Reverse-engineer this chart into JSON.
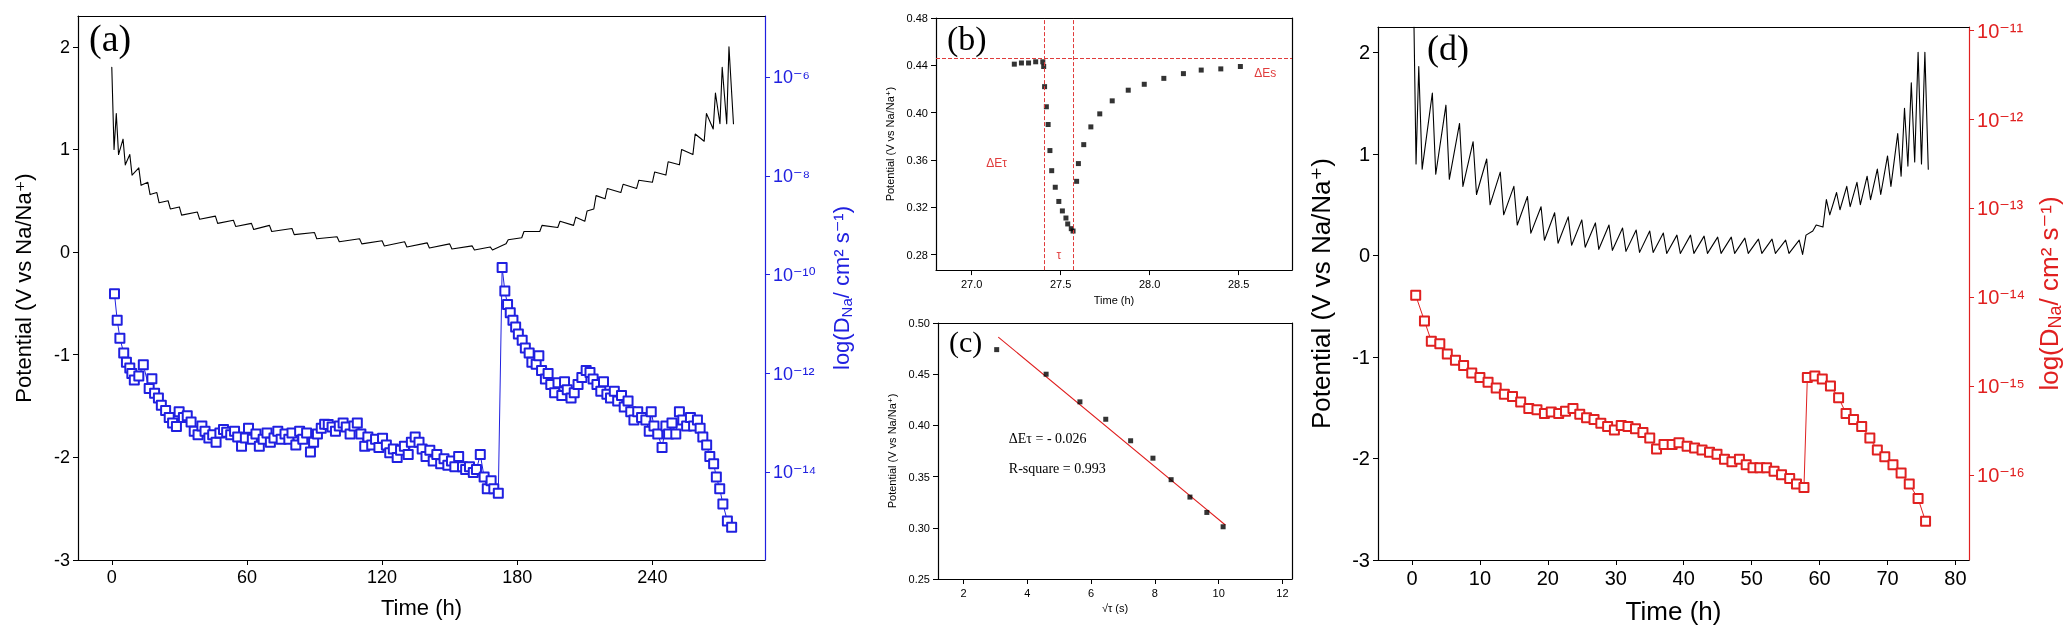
{
  "chart_data": [
    {
      "type": "line",
      "title": "(a)",
      "xlabel": "Time (h)",
      "ylabel": "Potential (V vs Na/Na⁺)",
      "y2label": "log(D$_{Na}$/ cm² s⁻¹)",
      "log": "y2",
      "xlim": [
        -15,
        290
      ],
      "xticks": [
        0,
        60,
        120,
        180,
        240
      ],
      "ylim": [
        -3,
        2.3
      ],
      "yticks": [
        -3,
        -2,
        -1,
        0,
        1,
        2
      ],
      "y2lim": [
        1.7e-16,
        1.7e-05
      ],
      "y2ticks": [
        {
          "value": 1e-14,
          "label": "10⁻¹⁴"
        },
        {
          "value": 1e-12,
          "label": "10⁻¹²"
        },
        {
          "value": 1e-10,
          "label": "10⁻¹⁰"
        },
        {
          "value": 1e-08,
          "label": "10⁻⁸"
        },
        {
          "value": 1e-06,
          "label": "10⁻⁶"
        }
      ],
      "series": [
        {
          "color": "#000000",
          "marker": "none",
          "x": [
            0,
            1,
            2,
            3,
            5,
            6,
            8,
            9,
            12,
            13,
            16,
            17,
            20,
            21,
            25,
            26,
            30,
            31,
            38,
            39,
            46,
            47,
            54,
            55,
            62,
            63,
            70,
            71,
            80,
            81,
            90,
            91,
            100,
            101,
            110,
            111,
            120,
            121,
            130,
            131,
            140,
            141,
            150,
            151,
            160,
            161,
            168,
            169,
            175,
            176,
            182,
            183,
            190,
            191,
            198,
            199,
            205,
            206,
            210,
            211,
            214,
            215,
            219,
            220,
            226,
            227,
            233,
            234,
            240,
            241,
            246,
            247,
            252,
            253,
            258,
            259,
            263,
            264,
            267,
            268,
            270,
            271,
            273,
            274,
            276
          ],
          "values": [
            1.8,
            1.0,
            1.35,
            0.95,
            1.1,
            0.85,
            0.95,
            0.75,
            0.82,
            0.65,
            0.68,
            0.56,
            0.58,
            0.48,
            0.5,
            0.42,
            0.44,
            0.36,
            0.39,
            0.32,
            0.35,
            0.28,
            0.31,
            0.25,
            0.28,
            0.22,
            0.26,
            0.2,
            0.23,
            0.17,
            0.19,
            0.13,
            0.15,
            0.1,
            0.13,
            0.08,
            0.11,
            0.06,
            0.1,
            0.05,
            0.09,
            0.04,
            0.08,
            0.03,
            0.06,
            0.02,
            0.05,
            0.02,
            0.08,
            0.12,
            0.14,
            0.2,
            0.2,
            0.26,
            0.24,
            0.3,
            0.26,
            0.34,
            0.3,
            0.4,
            0.42,
            0.55,
            0.52,
            0.62,
            0.58,
            0.66,
            0.62,
            0.7,
            0.68,
            0.78,
            0.75,
            0.88,
            0.85,
            1.0,
            0.95,
            1.15,
            1.08,
            1.35,
            1.2,
            1.55,
            1.25,
            1.8,
            1.25,
            2.0,
            1.25
          ]
        },
        {
          "color": "#2020e0",
          "marker": "square",
          "axis": "y2",
          "x": [
            1.2,
            2.4,
            3.6,
            5.3,
            6.5,
            8,
            8.9,
            10,
            12,
            14,
            16.6,
            17.8,
            19,
            20.7,
            22,
            23.9,
            25.5,
            27,
            28.7,
            29.9,
            31.8,
            33.5,
            35.2,
            36.6,
            38.3,
            40,
            41.4,
            43.1,
            44.8,
            46.3,
            48,
            49.6,
            51,
            52.8,
            54.5,
            55.9,
            57.6,
            59.3,
            60.7,
            62.4,
            64,
            65.5,
            67.2,
            68.9,
            70.4,
            72,
            73.7,
            75.2,
            76.9,
            78.6,
            80,
            81.7,
            83.4,
            84.8,
            86.5,
            88.2,
            89.6,
            91.3,
            93,
            94.5,
            96.1,
            97.8,
            99.3,
            101,
            102.7,
            104.1,
            105.8,
            107.5,
            109,
            110.6,
            112.3,
            113.7,
            115.4,
            117.1,
            118.6,
            120.2,
            121.9,
            123.4,
            125,
            126.7,
            128.2,
            129.9,
            131.6,
            133,
            134.7,
            136.4,
            137.8,
            139.5,
            141.2,
            142.7,
            144.3,
            146,
            147.5,
            149.2,
            150.8,
            152.3,
            154,
            155.7,
            157.1,
            158.8,
            160.5,
            161.9,
            163.6,
            165.3,
            166.7,
            168.4,
            169.6,
            171.6,
            173.3,
            174.5,
            175.7,
            176.9,
            178.1,
            179.3,
            180.5,
            182.2,
            183.6,
            185.3,
            186.5,
            188.4,
            189.6,
            190.8,
            192.5,
            193.7,
            194.9,
            196.6,
            198.1,
            199.8,
            201,
            202.2,
            203.9,
            205.3,
            207,
            208.7,
            210.6,
            212.3,
            213.7,
            215.4,
            217.1,
            218.3,
            219.8,
            221.4,
            223.1,
            224.6,
            226.3,
            227.5,
            229.2,
            230.4,
            231.8,
            233.5,
            235.2,
            237.1,
            238.6,
            239.5,
            240.7,
            242.4,
            244.3,
            246,
            247.2,
            248.7,
            250.4,
            252,
            253.5,
            255.2,
            256.9,
            258.3,
            260,
            261.2,
            262.4,
            264.1,
            265.5,
            267.2,
            268.4,
            269.9,
            271.3,
            273.3,
            275.2
          ],
          "values": [
            4.1e-11,
            1.2e-11,
            5.2e-12,
            2.6e-12,
            1.7e-12,
            1.3e-12,
            1e-12,
            7.4e-13,
            8.9e-13,
            1.5e-12,
            5e-13,
            7.9e-13,
            4e-13,
            3.2e-13,
            2.3e-13,
            1.8e-13,
            1.3e-13,
            1e-13,
            8.5e-14,
            1.7e-13,
            1.3e-13,
            1.4e-13,
            1.05e-13,
            6.8e-14,
            5.8e-14,
            8.7e-14,
            6.8e-14,
            5e-14,
            5.8e-14,
            4.1e-14,
            6.3e-14,
            7.4e-14,
            6.5e-14,
            5.8e-14,
            6.8e-14,
            5.2e-14,
            3.4e-14,
            5e-14,
            7.8e-14,
            4.7e-14,
            6e-14,
            3.4e-14,
            4.7e-14,
            6.3e-14,
            4.1e-14,
            5e-14,
            6.8e-14,
            4.7e-14,
            6e-14,
            4.7e-14,
            6.3e-14,
            3.6e-14,
            6.8e-14,
            4.7e-14,
            6.3e-14,
            2.6e-14,
            4.1e-14,
            6e-14,
            7.8e-14,
            9.5e-14,
            9.3e-14,
            8.3e-14,
            6.8e-14,
            8.7e-14,
            1e-13,
            8.3e-14,
            6e-14,
            8.7e-14,
            1e-13,
            6e-14,
            3.4e-14,
            5.2e-14,
            3.6e-14,
            4.7e-14,
            3.2e-14,
            4.9e-14,
            3.6e-14,
            2.5e-14,
            3e-14,
            2e-14,
            2.8e-14,
            3.4e-14,
            2.3e-14,
            4.1e-14,
            5.2e-14,
            4.1e-14,
            3e-14,
            2.1e-14,
            2.8e-14,
            1.7e-14,
            2.3e-14,
            1.5e-14,
            1.9e-14,
            1.4e-14,
            1.7e-14,
            1.3e-14,
            2.1e-14,
            1.3e-14,
            1.15e-14,
            1.3e-14,
            1e-14,
            1.15e-14,
            2.3e-14,
            8.1e-15,
            4.7e-15,
            6.8e-15,
            4.7e-15,
            3.8e-15,
            1.4e-10,
            4.7e-11,
            2.5e-11,
            1.7e-11,
            1.2e-11,
            8.7e-12,
            6.3e-12,
            4.7e-12,
            3.3e-12,
            2.6e-12,
            1.7e-12,
            1.55e-12,
            2.3e-12,
            1.15e-12,
            7.8e-13,
            1e-12,
            6e-13,
            4.1e-13,
            6.5e-13,
            3.6e-13,
            6.8e-13,
            4.7e-13,
            3.2e-13,
            4.1e-13,
            6e-13,
            8.3e-13,
            1.15e-12,
            1.05e-12,
            7.8e-13,
            6e-13,
            4.4e-13,
            6.8e-13,
            3.8e-13,
            3.2e-13,
            4.4e-13,
            2.8e-13,
            3.6e-13,
            2.1e-13,
            2.8e-13,
            1.7e-13,
            1.15e-13,
            1.7e-13,
            1.3e-13,
            1.15e-13,
            6.8e-14,
            1.7e-13,
            8.7e-14,
            6e-14,
            3.2e-14,
            8.7e-14,
            6e-14,
            1e-13,
            6e-14,
            1.7e-13,
            1.15e-13,
            8.7e-14,
            1.3e-13,
            8.7e-14,
            1.15e-13,
            7.8e-14,
            5.2e-14,
            3.6e-14,
            2.1e-14,
            1.5e-14,
            8.1e-15,
            4.7e-15,
            2.3e-15,
            1.05e-15,
            7.8e-16
          ]
        }
      ]
    },
    {
      "type": "scatter",
      "title": "(b)",
      "xlabel": "Time (h)",
      "ylabel": "Potential (V vs Na/Na⁺)",
      "xlim": [
        26.8,
        28.8
      ],
      "xticks": [
        {
          "value": 27,
          "label": "27.0"
        },
        27.5,
        {
          "value": 28,
          "label": "28.0"
        },
        28.5
      ],
      "ylim": [
        0.267,
        0.48
      ],
      "yticks": [
        0.28,
        0.32,
        0.36,
        {
          "value": 0.4,
          "label": "0.40"
        },
        0.44,
        0.48
      ],
      "series": [
        {
          "color": "#000000",
          "marker": "square",
          "x": [
            27.24,
            27.28,
            27.32,
            27.36,
            27.4,
            27.405,
            27.41,
            27.42,
            27.43,
            27.44,
            27.45,
            27.47,
            27.49,
            27.51,
            27.53,
            27.54,
            27.56,
            27.57,
            27.59,
            27.6,
            27.63,
            27.67,
            27.72,
            27.79,
            27.88,
            27.97,
            28.08,
            28.19,
            28.29,
            28.4,
            28.51
          ],
          "values": [
            0.441,
            0.442,
            0.442,
            0.443,
            0.443,
            0.439,
            0.422,
            0.405,
            0.39,
            0.368,
            0.351,
            0.337,
            0.325,
            0.317,
            0.311,
            0.306,
            0.302,
            0.3,
            0.342,
            0.357,
            0.373,
            0.388,
            0.399,
            0.41,
            0.419,
            0.424,
            0.429,
            0.433,
            0.436,
            0.437,
            0.439
          ]
        }
      ],
      "ref_lines": [
        {
          "axis": "y",
          "value": 0.446,
          "color": "#e03c3c",
          "line_style": "dashed"
        },
        {
          "axis": "x",
          "value": 27.41,
          "color": "#e03c3c",
          "line_style": "dashed"
        },
        {
          "axis": "x",
          "value": 27.57,
          "color": "#e03c3c",
          "line_style": "dashed"
        }
      ],
      "annotations": [
        "ΔEτ",
        "τ",
        "ΔEs"
      ]
    },
    {
      "type": "scatter",
      "title": "(c)",
      "xlabel": "√τ (s)",
      "ylabel": "Potential (V vs Na/Na⁺)",
      "xlim": [
        1.2,
        12.3
      ],
      "xticks": [
        2,
        4,
        6,
        8,
        10,
        12
      ],
      "ylim": [
        0.25,
        0.5
      ],
      "yticks": [
        0.25,
        {
          "value": 0.3,
          "label": "0.30"
        },
        0.35,
        {
          "value": 0.4,
          "label": "0.40"
        },
        0.45,
        {
          "value": 0.5,
          "label": "0.50"
        }
      ],
      "series": [
        {
          "color": "#000000",
          "marker": "square",
          "x": [
            3.04,
            4.59,
            5.65,
            6.46,
            7.24,
            7.94,
            8.51,
            9.1,
            9.63,
            10.14
          ],
          "values": [
            0.474,
            0.45,
            0.423,
            0.406,
            0.385,
            0.368,
            0.347,
            0.33,
            0.315,
            0.301
          ]
        },
        {
          "type": "line",
          "color": "#e02020",
          "marker": "none",
          "x": [
            3.1,
            10.2
          ],
          "values": [
            0.486,
            0.303
          ]
        }
      ],
      "annotations": [
        "ΔEτ = - 0.026",
        "R-square = 0.993"
      ]
    },
    {
      "type": "line",
      "title": "(d)",
      "xlabel": "Time (h)",
      "ylabel": "Potential (V vs Na/Na⁺)",
      "y2label": "log(D$_{Na}$/ cm² s⁻¹)",
      "log": "y2",
      "xlim": [
        -5,
        82
      ],
      "xticks": [
        0,
        10,
        20,
        30,
        40,
        50,
        60,
        70,
        80
      ],
      "ylim": [
        -3,
        2.25
      ],
      "yticks": [
        -3,
        -2,
        -1,
        0,
        1,
        2
      ],
      "y2lim": [
        1.1e-17,
        1.1e-11
      ],
      "y2ticks": [
        {
          "value": 1e-16,
          "label": "10⁻¹⁶"
        },
        {
          "value": 1e-15,
          "label": "10⁻¹⁵"
        },
        {
          "value": 1e-14,
          "label": "10⁻¹⁴"
        },
        {
          "value": 1e-13,
          "label": "10⁻¹³"
        },
        {
          "value": 1e-12,
          "label": "10⁻¹²"
        },
        {
          "value": 1e-11,
          "label": "10⁻¹¹"
        }
      ],
      "series": [
        {
          "color": "#000000",
          "marker": "none",
          "x": [
            0.3,
            0.6,
            1,
            1.5,
            3,
            3.5,
            5,
            5.5,
            7,
            7.5,
            9,
            9.5,
            11,
            11.5,
            13,
            13.5,
            15,
            15.5,
            17,
            17.5,
            19,
            19.5,
            21,
            21.5,
            23,
            23.5,
            25,
            25.5,
            27,
            27.5,
            29,
            29.5,
            31,
            31.5,
            33,
            33.5,
            35,
            35.5,
            37,
            37.5,
            39,
            39.5,
            41,
            41.5,
            43,
            43.5,
            45,
            45.5,
            47,
            47.5,
            49,
            49.5,
            51,
            51.5,
            53,
            53.5,
            55,
            55.5,
            57,
            57.5,
            58,
            59,
            59.5,
            60.5,
            61,
            61.5,
            62.5,
            63,
            64,
            64.5,
            65.5,
            66,
            67,
            67.5,
            68.5,
            69,
            70,
            70.5,
            71.5,
            72,
            72.5,
            73,
            73.5,
            74,
            74.5,
            75,
            75.5,
            76
          ],
          "values": [
            2.25,
            0.9,
            1.86,
            0.85,
            1.6,
            0.8,
            1.48,
            0.75,
            1.3,
            0.68,
            1.12,
            0.6,
            0.95,
            0.5,
            0.82,
            0.4,
            0.68,
            0.3,
            0.58,
            0.22,
            0.48,
            0.15,
            0.42,
            0.12,
            0.38,
            0.1,
            0.35,
            0.08,
            0.32,
            0.06,
            0.3,
            0.05,
            0.27,
            0.04,
            0.25,
            0.03,
            0.24,
            0.03,
            0.22,
            0.02,
            0.2,
            0.02,
            0.2,
            0.02,
            0.19,
            0.02,
            0.18,
            0.02,
            0.18,
            0.02,
            0.17,
            0.02,
            0.16,
            0.02,
            0.16,
            0.02,
            0.15,
            0.02,
            0.15,
            0.01,
            0.2,
            0.24,
            0.3,
            0.28,
            0.55,
            0.4,
            0.62,
            0.45,
            0.68,
            0.48,
            0.72,
            0.5,
            0.78,
            0.55,
            0.85,
            0.6,
            0.98,
            0.68,
            1.2,
            0.78,
            1.45,
            0.88,
            1.7,
            0.92,
            2.0,
            0.9,
            2.0,
            0.85
          ]
        },
        {
          "color": "#e02020",
          "marker": "square",
          "axis": "y2",
          "x": [
            0.55,
            1.84,
            2.85,
            4.1,
            5.2,
            6.4,
            7.6,
            8.8,
            10,
            11.2,
            12.4,
            13.6,
            14.8,
            16,
            17.2,
            18.4,
            19.5,
            20.5,
            21.6,
            22.6,
            23.7,
            24.7,
            25.7,
            26.8,
            27.8,
            28.8,
            29.8,
            30.8,
            31.8,
            32.9,
            34,
            35,
            36,
            37.1,
            38.3,
            39.3,
            40.5,
            41.6,
            42.7,
            43.8,
            44.9,
            46,
            47.1,
            48.2,
            49.2,
            50.2,
            51.2,
            52.2,
            53.3,
            54.4,
            55.6,
            56.6,
            57.7,
            58.2,
            59.3,
            60.4,
            61.6,
            62.8,
            63.9,
            65,
            66.2,
            67.4,
            68.5,
            69.6,
            70.8,
            72,
            73.2,
            74.5,
            75.6
          ],
          "values": [
            1.05e-14,
            5.4e-15,
            3.2e-15,
            3e-15,
            2.3e-15,
            1.95e-15,
            1.7e-15,
            1.4e-15,
            1.25e-15,
            1.1e-15,
            9.5e-16,
            8.1e-16,
            7.6e-16,
            6.6e-16,
            5.6e-16,
            5.4e-16,
            4.9e-16,
            5.1e-16,
            4.9e-16,
            5.2e-16,
            5.6e-16,
            4.8e-16,
            4.4e-16,
            4.2e-16,
            3.8e-16,
            3.5e-16,
            3.2e-16,
            3.6e-16,
            3.5e-16,
            3.3e-16,
            3e-16,
            2.6e-16,
            1.95e-16,
            2.2e-16,
            2.2e-16,
            2.3e-16,
            2.1e-16,
            2e-16,
            1.9e-16,
            1.8e-16,
            1.7e-16,
            1.5e-16,
            1.4e-16,
            1.5e-16,
            1.3e-16,
            1.2e-16,
            1.2e-16,
            1.2e-16,
            1.1e-16,
            1e-16,
            9.1e-17,
            7.9e-17,
            7.2e-17,
            1.25e-15,
            1.3e-15,
            1.2e-15,
            1e-15,
            7.4e-16,
            4.9e-16,
            4.2e-16,
            3.5e-16,
            2.6e-16,
            1.9e-16,
            1.6e-16,
            1.3e-16,
            1.05e-16,
            7.9e-17,
            5.4e-17,
            3e-17
          ]
        }
      ]
    }
  ]
}
